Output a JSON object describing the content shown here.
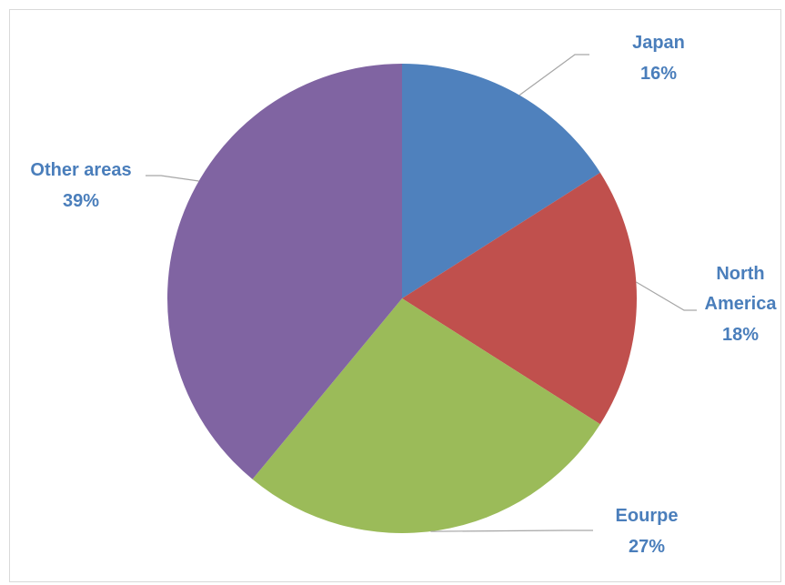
{
  "chart_data": {
    "type": "pie",
    "title": "",
    "categories": [
      "Japan",
      "North America",
      "Eourpe",
      "Other areas"
    ],
    "values": [
      16,
      18,
      27,
      39
    ],
    "labels": [
      "16%",
      "18%",
      "27%",
      "39%"
    ],
    "colors": [
      "#4f81bd",
      "#c0504d",
      "#9bbb59",
      "#8064a2"
    ],
    "label_color": "#4a7ebb",
    "start_angle_deg": 0,
    "direction": "clockwise",
    "legend": "none"
  }
}
